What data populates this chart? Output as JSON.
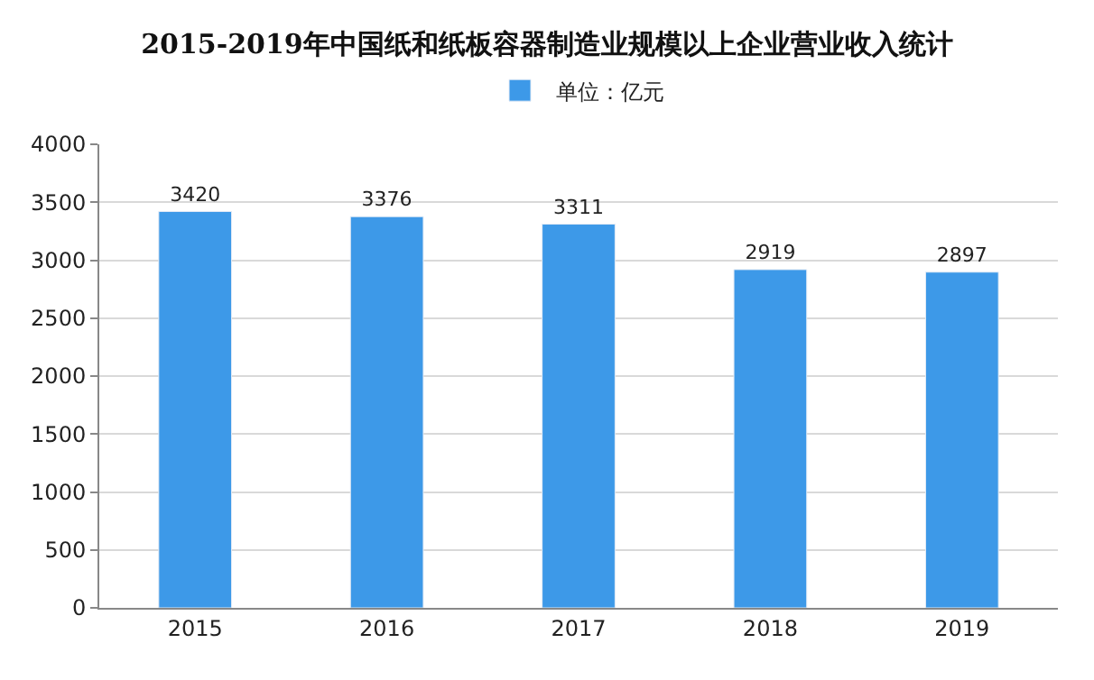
{
  "chart_data": {
    "type": "bar",
    "title": "2015-2019年中国纸和纸板容器制造业规模以上企业营业收入统计",
    "categories": [
      "2015",
      "2016",
      "2017",
      "2018",
      "2019"
    ],
    "series": [
      {
        "name": "单位：亿元",
        "color": "#3d99e8",
        "values": [
          3420,
          3376,
          3311,
          2919,
          2897
        ]
      }
    ],
    "ylim": [
      0,
      4000
    ],
    "yticks": [
      0,
      500,
      1000,
      1500,
      2000,
      2500,
      3000,
      3500,
      4000
    ],
    "grid": "y",
    "legend": "top",
    "data_labels": true
  }
}
